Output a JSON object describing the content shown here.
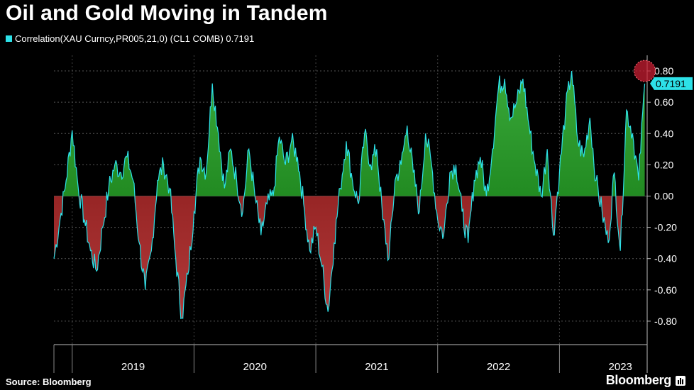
{
  "title": "Oil and Gold Moving in Tandem",
  "legend": {
    "label": "Correlation(XAU Curncy,PR005,21,0) (CL1 COMB) 0.7191",
    "color": "#2de1e8"
  },
  "source": "Source: Bloomberg",
  "brand": "Bloomberg",
  "brand_icon": "bloomberg-terminal-icon",
  "colors": {
    "line": "#2de1e8",
    "positive_fill": "#1e9a1e",
    "negative_fill": "#a01c1c",
    "last_value_marker": "#c81e32",
    "last_value_label_bg": "#2de1e8"
  },
  "chart_data": {
    "type": "area",
    "title": "Oil and Gold Moving in Tandem",
    "xlabel": "",
    "ylabel": "",
    "ylim": [
      -0.95,
      0.9
    ],
    "y_ticks": [
      0.8,
      0.6,
      0.4,
      0.2,
      0.0,
      -0.2,
      -0.4,
      -0.6,
      -0.8
    ],
    "y_tick_labels": [
      "0.80",
      "0.60",
      "0.40",
      "0.20",
      "0.00",
      "-0.20",
      "-0.40",
      "-0.60",
      "-0.80"
    ],
    "x_labels": [
      "2019",
      "2020",
      "2021",
      "2022",
      "2023"
    ],
    "grid": true,
    "last_value": 0.7191,
    "last_value_label": "0.7191",
    "series": [
      {
        "name": "Correlation(XAU Curncy,PR005,21,0) (CL1 COMB)",
        "x": [
          2018.85,
          2018.9,
          2018.95,
          2019.0,
          2019.05,
          2019.1,
          2019.15,
          2019.2,
          2019.25,
          2019.3,
          2019.35,
          2019.4,
          2019.45,
          2019.5,
          2019.55,
          2019.6,
          2019.65,
          2019.7,
          2019.75,
          2019.8,
          2019.85,
          2019.9,
          2019.95,
          2020.0,
          2020.05,
          2020.1,
          2020.15,
          2020.2,
          2020.25,
          2020.3,
          2020.35,
          2020.4,
          2020.45,
          2020.5,
          2020.55,
          2020.6,
          2020.65,
          2020.7,
          2020.75,
          2020.8,
          2020.85,
          2020.9,
          2020.95,
          2021.0,
          2021.05,
          2021.1,
          2021.15,
          2021.2,
          2021.25,
          2021.3,
          2021.35,
          2021.4,
          2021.45,
          2021.5,
          2021.55,
          2021.6,
          2021.65,
          2021.7,
          2021.75,
          2021.8,
          2021.85,
          2021.9,
          2021.95,
          2022.0,
          2022.05,
          2022.1,
          2022.15,
          2022.2,
          2022.25,
          2022.3,
          2022.35,
          2022.4,
          2022.45,
          2022.5,
          2022.55,
          2022.6,
          2022.65,
          2022.7,
          2022.75,
          2022.8,
          2022.85,
          2022.9,
          2022.95,
          2023.0,
          2023.05,
          2023.1,
          2023.15,
          2023.2,
          2023.25,
          2023.3,
          2023.35,
          2023.4,
          2023.45,
          2023.5,
          2023.55,
          2023.6,
          2023.65,
          2023.7
        ],
        "values": [
          -0.4,
          -0.15,
          0.1,
          0.42,
          0.05,
          -0.15,
          -0.35,
          -0.48,
          -0.2,
          0.05,
          0.2,
          0.15,
          0.25,
          0.1,
          -0.3,
          -0.6,
          -0.35,
          0.1,
          0.2,
          0.05,
          -0.4,
          -0.78,
          -0.5,
          -0.1,
          0.25,
          0.15,
          0.72,
          0.4,
          0.05,
          0.3,
          0.1,
          -0.1,
          0.3,
          0.0,
          -0.25,
          -0.05,
          0.0,
          0.38,
          0.2,
          0.35,
          0.25,
          -0.05,
          -0.35,
          -0.2,
          -0.45,
          -0.74,
          -0.3,
          0.05,
          0.35,
          0.1,
          -0.05,
          0.4,
          0.2,
          0.3,
          -0.15,
          -0.4,
          0.1,
          0.2,
          0.45,
          0.15,
          -0.1,
          0.4,
          0.2,
          -0.15,
          -0.25,
          0.15,
          0.2,
          -0.1,
          -0.3,
          0.1,
          0.25,
          0.0,
          0.3,
          0.7,
          0.75,
          0.5,
          0.6,
          0.75,
          0.45,
          0.2,
          0.0,
          0.3,
          -0.25,
          0.15,
          0.55,
          0.8,
          0.35,
          0.25,
          0.5,
          0.1,
          -0.1,
          -0.3,
          0.15,
          -0.35,
          0.55,
          0.4,
          0.1,
          0.7191
        ]
      }
    ]
  }
}
